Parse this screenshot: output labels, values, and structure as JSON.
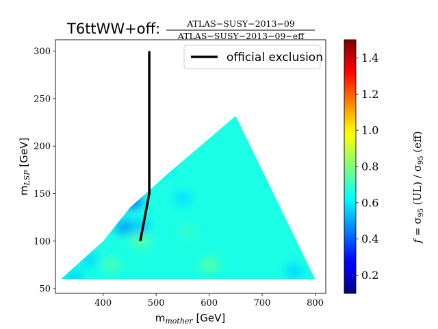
{
  "chart_data": {
    "type": "heatmap",
    "title_main": "T6ttWW+off:",
    "title_fraction_numerator": "ATLAS−SUSY−2013−09",
    "title_fraction_denominator": "ATLAS−SUSY−2013−09−eff",
    "xlabel_base": "m",
    "xlabel_sub": "mother",
    "xlabel_unit": " [GeV]",
    "ylabel_base": "m",
    "ylabel_sub": "LSP",
    "ylabel_unit": " [GeV]",
    "xlim": [
      310,
      820
    ],
    "ylim": [
      45,
      312
    ],
    "x_ticks": [
      400,
      500,
      600,
      700,
      800
    ],
    "y_ticks": [
      50,
      100,
      150,
      200,
      250,
      300
    ],
    "colorbar": {
      "range": [
        0.1,
        1.5
      ],
      "ticks": [
        "0.2",
        "0.4",
        "0.6",
        "0.8",
        "1.0",
        "1.2",
        "1.4"
      ],
      "label": "f = σ95 (UL) / σ95 (eff)",
      "colormap": "jet"
    },
    "region_polygon": [
      [
        320,
        60
      ],
      [
        400,
        100
      ],
      [
        450,
        135
      ],
      [
        520,
        170
      ],
      [
        650,
        232
      ],
      [
        800,
        60
      ]
    ],
    "value_field": {
      "base_value": 0.66,
      "blobs": [
        {
          "x": 455,
          "y": 142,
          "value": 0.4
        },
        {
          "x": 440,
          "y": 115,
          "value": 0.48
        },
        {
          "x": 470,
          "y": 115,
          "value": 0.54
        },
        {
          "x": 375,
          "y": 80,
          "value": 0.57
        },
        {
          "x": 345,
          "y": 62,
          "value": 0.56
        },
        {
          "x": 550,
          "y": 145,
          "value": 0.58
        },
        {
          "x": 515,
          "y": 175,
          "value": 0.6
        },
        {
          "x": 470,
          "y": 100,
          "value": 0.76
        },
        {
          "x": 600,
          "y": 75,
          "value": 0.76
        },
        {
          "x": 415,
          "y": 75,
          "value": 0.73
        },
        {
          "x": 560,
          "y": 110,
          "value": 0.7
        },
        {
          "x": 760,
          "y": 68,
          "value": 0.56
        }
      ]
    },
    "series": [
      {
        "name": "official exclusion",
        "color": "#000000",
        "points": [
          [
            487,
            300
          ],
          [
            487,
            150
          ],
          [
            470,
            100
          ]
        ]
      }
    ],
    "legend": {
      "position": "top-right"
    }
  }
}
